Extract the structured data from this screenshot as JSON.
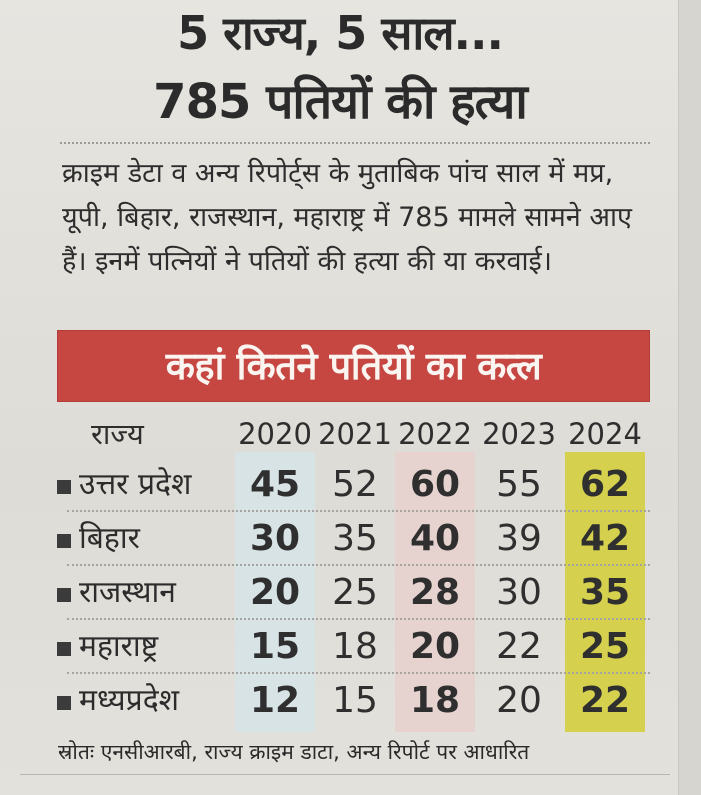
{
  "headline": {
    "line1": "5 राज्य, 5 साल...",
    "line2": "785 पतियों की हत्या"
  },
  "intro": "क्राइम डेटा व अन्य रिपोर्ट्स के मुताबिक पांच साल में मप्र, यूपी, बिहार, राजस्थान, महाराष्ट्र में 785 मामले सामने आए हैं। इनमें पत्नियों ने पतियों की हत्या की या करवाई।",
  "table": {
    "title": "कहां कितने पतियों का कत्ल",
    "state_header": "राज्य",
    "years": [
      "2020",
      "2021",
      "2022",
      "2023",
      "2024"
    ],
    "rows": [
      {
        "state": "उत्तर प्रदेश",
        "values": [
          "45",
          "52",
          "60",
          "55",
          "62"
        ]
      },
      {
        "state": "बिहार",
        "values": [
          "30",
          "35",
          "40",
          "39",
          "42"
        ]
      },
      {
        "state": "राजस्थान",
        "values": [
          "20",
          "25",
          "28",
          "30",
          "35"
        ]
      },
      {
        "state": "महाराष्ट्र",
        "values": [
          "15",
          "18",
          "20",
          "22",
          "25"
        ]
      },
      {
        "state": "मध्यप्रदेश",
        "values": [
          "12",
          "15",
          "18",
          "20",
          "22"
        ]
      }
    ]
  },
  "source": "स्रोतः एनसीआरबी, राज्य क्राइम डाटा, अन्य रिपोर्ट पर आधारित",
  "colors": {
    "banner": "#c64742",
    "band_2020": "#d8e3e6",
    "band_2022": "#e6d3d0",
    "band_2024": "#d5d04d"
  }
}
